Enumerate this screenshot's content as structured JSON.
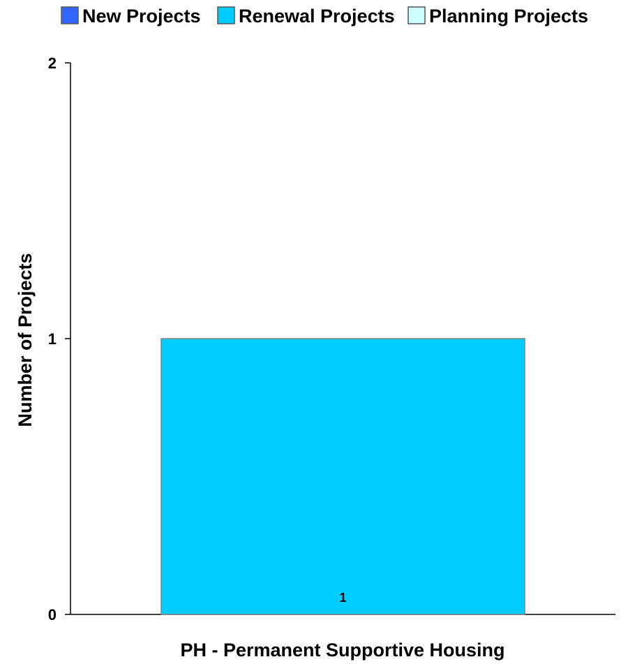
{
  "chart_data": {
    "type": "bar",
    "categories": [
      "PH - Permanent Supportive Housing"
    ],
    "series": [
      {
        "name": "New Projects",
        "values": [
          0
        ],
        "color": "#3366ff"
      },
      {
        "name": "Renewal Projects",
        "values": [
          1
        ],
        "color": "#00ccff"
      },
      {
        "name": "Planning Projects",
        "values": [
          0
        ],
        "color": "#ccffff"
      }
    ],
    "data_labels": [
      "1"
    ],
    "xlabel": "PH - Permanent Supportive Housing",
    "ylabel": "Number of Projects",
    "ylim": [
      0,
      2
    ],
    "yticks": [
      0,
      1,
      2
    ],
    "stacked": true,
    "grid": false,
    "legend_position": "top"
  }
}
